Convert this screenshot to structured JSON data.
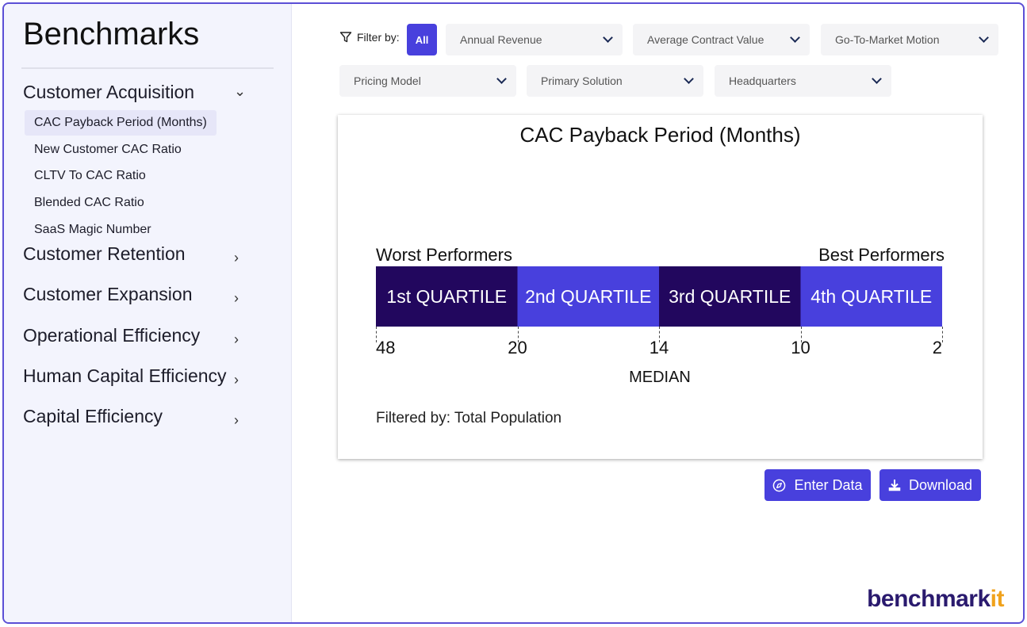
{
  "sidebar": {
    "title": "Benchmarks",
    "sections": [
      {
        "label": "Customer Acquisition",
        "expanded": true,
        "items": [
          "CAC Payback Period (Months)",
          "New Customer CAC Ratio",
          "CLTV To CAC Ratio",
          "Blended CAC Ratio",
          "SaaS Magic Number"
        ]
      },
      {
        "label": "Customer Retention",
        "expanded": false
      },
      {
        "label": "Customer Expansion",
        "expanded": false
      },
      {
        "label": "Operational Efficiency",
        "expanded": false
      },
      {
        "label": "Human Capital Efficiency",
        "expanded": false
      },
      {
        "label": "Capital Efficiency",
        "expanded": false
      }
    ],
    "active_item": "CAC Payback Period (Months)"
  },
  "filters": {
    "label": "Filter by:",
    "all_button": "All",
    "dropdowns": [
      "Annual Revenue",
      "Average Contract Value",
      "Go-To-Market Motion",
      "Pricing Model",
      "Primary Solution",
      "Headquarters"
    ]
  },
  "chart": {
    "worst_label": "Worst Performers",
    "best_label": "Best Performers",
    "median_label": "MEDIAN",
    "filtered_text": "Filtered by: Total Population"
  },
  "chart_data": {
    "type": "bar",
    "title": "CAC Payback Period (Months)",
    "categories": [
      "1st QUARTILE",
      "2nd QUARTILE",
      "3rd QUARTILE",
      "4th QUARTILE"
    ],
    "boundaries": [
      48,
      20,
      14,
      10,
      2
    ],
    "colors": [
      "#22075e",
      "#4840dd",
      "#22075e",
      "#4840dd"
    ]
  },
  "actions": {
    "enter_data": "Enter Data",
    "download": "Download"
  },
  "logo": {
    "text": "benchmark",
    "accent": "it"
  },
  "colors": {
    "accent": "#4840dd",
    "dark": "#22075e",
    "sidebar_bg": "#f3f4fd"
  }
}
